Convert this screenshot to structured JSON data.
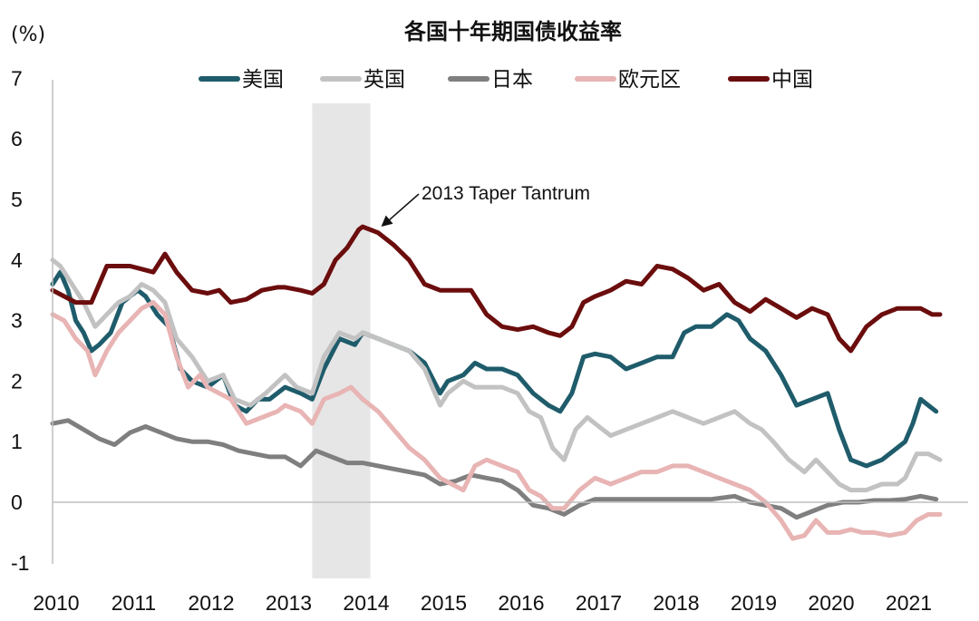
{
  "chart_data": {
    "type": "line",
    "title": "各国十年期国债收益率",
    "unit_label": "(%)",
    "ylim": [
      -1,
      7
    ],
    "yticks": [
      "-1",
      "0",
      "1",
      "2",
      "3",
      "4",
      "5",
      "6",
      "7"
    ],
    "xlim": [
      2010,
      2021.5
    ],
    "xticks": [
      "2010",
      "2011",
      "2012",
      "2013",
      "2014",
      "2015",
      "2016",
      "2017",
      "2018",
      "2019",
      "2020",
      "2021"
    ],
    "shaded_region": [
      2013.35,
      2014.1
    ],
    "annotation": {
      "text": "2013 Taper Tantrum",
      "x": 2014.1,
      "y": 4.7
    },
    "legend_position": "top",
    "series": [
      {
        "name": "美国",
        "color": "#1f5c6b",
        "x": [
          2010.0,
          2010.1,
          2010.2,
          2010.3,
          2010.4,
          2010.5,
          2010.6,
          2010.75,
          2010.9,
          2011.0,
          2011.1,
          2011.2,
          2011.35,
          2011.5,
          2011.65,
          2011.8,
          2012.0,
          2012.2,
          2012.35,
          2012.5,
          2012.65,
          2012.8,
          2013.0,
          2013.2,
          2013.35,
          2013.5,
          2013.7,
          2013.9,
          2014.0,
          2014.2,
          2014.4,
          2014.6,
          2014.8,
          2015.0,
          2015.1,
          2015.3,
          2015.45,
          2015.6,
          2015.8,
          2016.0,
          2016.2,
          2016.4,
          2016.55,
          2016.7,
          2016.85,
          2017.0,
          2017.2,
          2017.4,
          2017.6,
          2017.8,
          2018.0,
          2018.15,
          2018.3,
          2018.5,
          2018.7,
          2018.85,
          2019.0,
          2019.2,
          2019.4,
          2019.6,
          2019.8,
          2020.0,
          2020.15,
          2020.3,
          2020.5,
          2020.7,
          2020.9,
          2021.0,
          2021.1,
          2021.2,
          2021.3,
          2021.4
        ],
        "y": [
          3.6,
          3.8,
          3.5,
          3.0,
          2.8,
          2.5,
          2.6,
          2.8,
          3.3,
          3.4,
          3.5,
          3.4,
          3.1,
          2.9,
          2.2,
          2.0,
          1.9,
          2.1,
          1.6,
          1.5,
          1.7,
          1.7,
          1.9,
          1.8,
          1.7,
          2.2,
          2.7,
          2.6,
          2.8,
          2.7,
          2.6,
          2.5,
          2.3,
          1.8,
          2.0,
          2.1,
          2.3,
          2.2,
          2.2,
          2.1,
          1.8,
          1.6,
          1.5,
          1.8,
          2.4,
          2.45,
          2.4,
          2.2,
          2.3,
          2.4,
          2.4,
          2.8,
          2.9,
          2.9,
          3.1,
          3.0,
          2.7,
          2.5,
          2.1,
          1.6,
          1.7,
          1.8,
          1.2,
          0.7,
          0.6,
          0.7,
          0.9,
          1.0,
          1.3,
          1.7,
          1.6,
          1.5
        ]
      },
      {
        "name": "英国",
        "color": "#c2c2c2",
        "x": [
          2010.0,
          2010.1,
          2010.25,
          2010.4,
          2010.55,
          2010.7,
          2010.85,
          2011.0,
          2011.15,
          2011.3,
          2011.45,
          2011.6,
          2011.8,
          2012.0,
          2012.2,
          2012.35,
          2012.55,
          2012.75,
          2013.0,
          2013.15,
          2013.35,
          2013.5,
          2013.7,
          2013.9,
          2014.0,
          2014.2,
          2014.4,
          2014.6,
          2014.8,
          2015.0,
          2015.1,
          2015.3,
          2015.45,
          2015.6,
          2015.8,
          2016.0,
          2016.15,
          2016.3,
          2016.45,
          2016.6,
          2016.75,
          2016.9,
          2017.0,
          2017.2,
          2017.4,
          2017.6,
          2017.8,
          2018.0,
          2018.2,
          2018.4,
          2018.6,
          2018.8,
          2019.0,
          2019.15,
          2019.3,
          2019.5,
          2019.7,
          2019.85,
          2020.0,
          2020.15,
          2020.3,
          2020.5,
          2020.7,
          2020.9,
          2021.0,
          2021.15,
          2021.3,
          2021.45
        ],
        "y": [
          4.0,
          3.9,
          3.6,
          3.3,
          2.9,
          3.1,
          3.3,
          3.4,
          3.6,
          3.5,
          3.3,
          2.7,
          2.4,
          2.0,
          2.1,
          1.7,
          1.6,
          1.8,
          2.1,
          1.9,
          1.8,
          2.4,
          2.8,
          2.7,
          2.8,
          2.7,
          2.6,
          2.5,
          2.2,
          1.6,
          1.8,
          2.0,
          1.9,
          1.9,
          1.9,
          1.8,
          1.5,
          1.4,
          0.9,
          0.7,
          1.2,
          1.4,
          1.3,
          1.1,
          1.2,
          1.3,
          1.4,
          1.5,
          1.4,
          1.3,
          1.4,
          1.5,
          1.3,
          1.2,
          1.0,
          0.7,
          0.5,
          0.7,
          0.5,
          0.3,
          0.2,
          0.2,
          0.3,
          0.3,
          0.4,
          0.8,
          0.8,
          0.7
        ]
      },
      {
        "name": "日本",
        "color": "#7f7f7f",
        "x": [
          2010.0,
          2010.2,
          2010.4,
          2010.6,
          2010.8,
          2011.0,
          2011.2,
          2011.4,
          2011.6,
          2011.8,
          2012.0,
          2012.2,
          2012.4,
          2012.6,
          2012.8,
          2013.0,
          2013.2,
          2013.4,
          2013.6,
          2013.8,
          2014.0,
          2014.2,
          2014.4,
          2014.6,
          2014.8,
          2015.0,
          2015.2,
          2015.4,
          2015.6,
          2015.8,
          2016.0,
          2016.2,
          2016.4,
          2016.6,
          2016.8,
          2017.0,
          2017.3,
          2017.6,
          2017.9,
          2018.2,
          2018.5,
          2018.8,
          2019.0,
          2019.2,
          2019.4,
          2019.6,
          2019.8,
          2020.0,
          2020.2,
          2020.4,
          2020.6,
          2020.8,
          2021.0,
          2021.2,
          2021.4
        ],
        "y": [
          1.3,
          1.35,
          1.2,
          1.05,
          0.95,
          1.15,
          1.25,
          1.15,
          1.05,
          1.0,
          1.0,
          0.95,
          0.85,
          0.8,
          0.75,
          0.75,
          0.6,
          0.85,
          0.75,
          0.65,
          0.65,
          0.6,
          0.55,
          0.5,
          0.45,
          0.3,
          0.35,
          0.45,
          0.4,
          0.35,
          0.2,
          -0.05,
          -0.1,
          -0.2,
          -0.05,
          0.05,
          0.05,
          0.05,
          0.05,
          0.05,
          0.05,
          0.1,
          0.0,
          -0.05,
          -0.1,
          -0.25,
          -0.15,
          -0.05,
          0.0,
          0.0,
          0.03,
          0.03,
          0.05,
          0.1,
          0.05
        ]
      },
      {
        "name": "欧元区",
        "color": "#e8b4b4",
        "x": [
          2010.0,
          2010.15,
          2010.3,
          2010.45,
          2010.55,
          2010.7,
          2010.85,
          2011.0,
          2011.15,
          2011.3,
          2011.45,
          2011.6,
          2011.75,
          2011.9,
          2012.0,
          2012.15,
          2012.3,
          2012.5,
          2012.7,
          2012.9,
          2013.0,
          2013.2,
          2013.35,
          2013.5,
          2013.7,
          2013.85,
          2014.0,
          2014.2,
          2014.4,
          2014.6,
          2014.8,
          2015.0,
          2015.15,
          2015.3,
          2015.45,
          2015.6,
          2015.8,
          2016.0,
          2016.15,
          2016.3,
          2016.45,
          2016.6,
          2016.8,
          2017.0,
          2017.2,
          2017.4,
          2017.6,
          2017.8,
          2018.0,
          2018.2,
          2018.4,
          2018.6,
          2018.8,
          2019.0,
          2019.2,
          2019.4,
          2019.55,
          2019.7,
          2019.85,
          2020.0,
          2020.15,
          2020.3,
          2020.45,
          2020.6,
          2020.8,
          2021.0,
          2021.15,
          2021.3,
          2021.45
        ],
        "y": [
          3.1,
          3.0,
          2.7,
          2.5,
          2.1,
          2.5,
          2.8,
          3.0,
          3.2,
          3.3,
          3.1,
          2.4,
          1.9,
          2.1,
          1.9,
          1.8,
          1.7,
          1.3,
          1.4,
          1.5,
          1.6,
          1.5,
          1.3,
          1.7,
          1.8,
          1.9,
          1.7,
          1.5,
          1.2,
          0.9,
          0.7,
          0.4,
          0.3,
          0.2,
          0.6,
          0.7,
          0.6,
          0.5,
          0.2,
          0.1,
          -0.1,
          -0.1,
          0.2,
          0.4,
          0.3,
          0.4,
          0.5,
          0.5,
          0.6,
          0.6,
          0.5,
          0.4,
          0.3,
          0.2,
          0.0,
          -0.3,
          -0.6,
          -0.55,
          -0.3,
          -0.5,
          -0.5,
          -0.45,
          -0.5,
          -0.5,
          -0.55,
          -0.5,
          -0.3,
          -0.2,
          -0.2
        ]
      },
      {
        "name": "中国",
        "color": "#6b0d0d",
        "x": [
          2010.0,
          2010.15,
          2010.3,
          2010.5,
          2010.7,
          2010.85,
          2011.0,
          2011.15,
          2011.3,
          2011.45,
          2011.6,
          2011.8,
          2012.0,
          2012.15,
          2012.3,
          2012.5,
          2012.7,
          2012.9,
          2013.0,
          2013.2,
          2013.35,
          2013.5,
          2013.65,
          2013.8,
          2013.95,
          2014.0,
          2014.2,
          2014.4,
          2014.6,
          2014.8,
          2015.0,
          2015.2,
          2015.4,
          2015.6,
          2015.8,
          2016.0,
          2016.2,
          2016.4,
          2016.55,
          2016.7,
          2016.85,
          2017.0,
          2017.2,
          2017.4,
          2017.6,
          2017.8,
          2018.0,
          2018.2,
          2018.4,
          2018.6,
          2018.8,
          2019.0,
          2019.2,
          2019.4,
          2019.6,
          2019.8,
          2020.0,
          2020.15,
          2020.3,
          2020.5,
          2020.7,
          2020.9,
          2021.0,
          2021.2,
          2021.35,
          2021.45
        ],
        "y": [
          3.5,
          3.4,
          3.3,
          3.3,
          3.9,
          3.9,
          3.9,
          3.85,
          3.8,
          4.1,
          3.8,
          3.5,
          3.45,
          3.5,
          3.3,
          3.35,
          3.5,
          3.55,
          3.55,
          3.5,
          3.45,
          3.6,
          4.0,
          4.2,
          4.5,
          4.55,
          4.45,
          4.25,
          4.0,
          3.6,
          3.5,
          3.5,
          3.5,
          3.1,
          2.9,
          2.85,
          2.9,
          2.8,
          2.75,
          2.9,
          3.3,
          3.4,
          3.5,
          3.65,
          3.6,
          3.9,
          3.85,
          3.7,
          3.5,
          3.6,
          3.3,
          3.15,
          3.35,
          3.2,
          3.05,
          3.2,
          3.1,
          2.7,
          2.5,
          2.9,
          3.1,
          3.2,
          3.2,
          3.2,
          3.1,
          3.1
        ]
      }
    ]
  }
}
